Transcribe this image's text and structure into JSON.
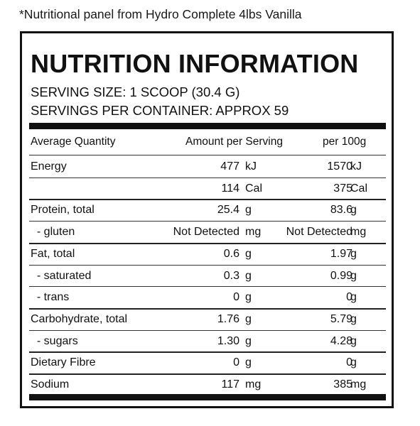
{
  "caption": "*Nutritional panel from Hydro Complete 4lbs Vanilla",
  "panel": {
    "title": "NUTRITION INFORMATION",
    "serving_size": "SERVING SIZE: 1 SCOOP (30.4 G)",
    "servings_per_container": "SERVINGS PER CONTAINER:  APPROX 59",
    "headers": {
      "quantity": "Average Quantity",
      "per_serving": "Amount per Serving",
      "per_100g": "per 100g"
    },
    "rows": [
      {
        "label": "Energy",
        "serving": "477",
        "serving_unit": "kJ",
        "per100": "1570",
        "per100_unit": "kJ"
      },
      {
        "label": "",
        "serving": "114",
        "serving_unit": "Cal",
        "per100": "375",
        "per100_unit": "Cal"
      },
      {
        "label": "Protein, total",
        "serving": "25.4",
        "serving_unit": "g",
        "per100": "83.6",
        "per100_unit": "g"
      },
      {
        "label": "  - gluten",
        "serving": "Not Detected",
        "serving_unit": "mg",
        "per100": "Not Detected",
        "per100_unit": "mg"
      },
      {
        "label": "Fat, total",
        "serving": "0.6",
        "serving_unit": "g",
        "per100": "1.97",
        "per100_unit": "g"
      },
      {
        "label": "  - saturated",
        "serving": "0.3",
        "serving_unit": "g",
        "per100": "0.99",
        "per100_unit": "g"
      },
      {
        "label": "  - trans",
        "serving": "0",
        "serving_unit": "g",
        "per100": "0",
        "per100_unit": "g"
      },
      {
        "label": "Carbohydrate, total",
        "serving": "1.76",
        "serving_unit": "g",
        "per100": "5.79",
        "per100_unit": "g"
      },
      {
        "label": "  - sugars",
        "serving": "1.30",
        "serving_unit": "g",
        "per100": "4.28",
        "per100_unit": "g"
      },
      {
        "label": "Dietary Fibre",
        "serving": "0",
        "serving_unit": "g",
        "per100": "0",
        "per100_unit": "g"
      },
      {
        "label": "Sodium",
        "serving": "117",
        "serving_unit": "mg",
        "per100": "385",
        "per100_unit": "mg"
      }
    ]
  }
}
